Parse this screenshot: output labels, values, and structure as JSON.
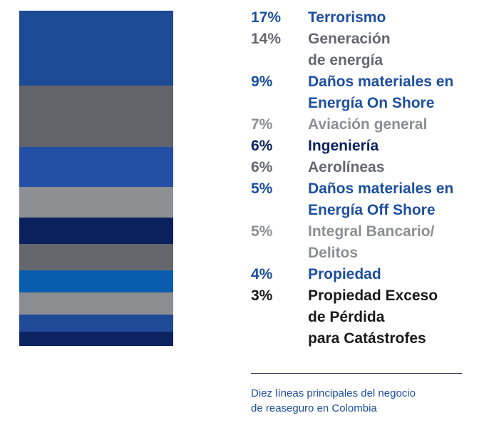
{
  "chart_data": {
    "type": "bar",
    "title": "",
    "xlabel": "",
    "ylabel": "",
    "series": [
      {
        "pct": "17%",
        "value": 17,
        "label_lines": [
          "Terrorismo"
        ],
        "bar_color": "#1c4a94",
        "text_color": "#1d4fa0"
      },
      {
        "pct": "14%",
        "value": 14,
        "label_lines": [
          "Generación",
          "de energía"
        ],
        "bar_color": "#63646b",
        "text_color": "#666770"
      },
      {
        "pct": "9%",
        "value": 9,
        "label_lines": [
          "Daños materiales en",
          "Energía On Shore"
        ],
        "bar_color": "#2350a6",
        "text_color": "#1d4fa0"
      },
      {
        "pct": "7%",
        "value": 7,
        "label_lines": [
          "Aviación general"
        ],
        "bar_color": "#8e8f93",
        "text_color": "#8e8f94"
      },
      {
        "pct": "6%",
        "value": 6,
        "label_lines": [
          "Ingeniería"
        ],
        "bar_color": "#0b215e",
        "text_color": "#0b215e"
      },
      {
        "pct": "6%",
        "value": 6,
        "label_lines": [
          "Aerolíneas"
        ],
        "bar_color": "#66676e",
        "text_color": "#666770"
      },
      {
        "pct": "5%",
        "value": 5,
        "label_lines": [
          "Daños materiales en",
          "Energía Off Shore"
        ],
        "bar_color": "#0a5cae",
        "text_color": "#1d4fa0"
      },
      {
        "pct": "5%",
        "value": 5,
        "label_lines": [
          "Integral Bancario/",
          "Delitos"
        ],
        "bar_color": "#8c8d91",
        "text_color": "#8e8f94"
      },
      {
        "pct": "4%",
        "value": 4,
        "label_lines": [
          "Propiedad"
        ],
        "bar_color": "#1e4a96",
        "text_color": "#1d4fa0"
      },
      {
        "pct": "3%",
        "value": 3,
        "label_lines": [
          "Propiedad Exceso",
          "de Pérdida",
          "para Catástrofes"
        ],
        "bar_color": "#0c2361",
        "text_color": "#1a1a1a"
      }
    ]
  },
  "caption_lines": [
    "Diez líneas principales del negocio",
    "de reaseguro en Colombia"
  ]
}
